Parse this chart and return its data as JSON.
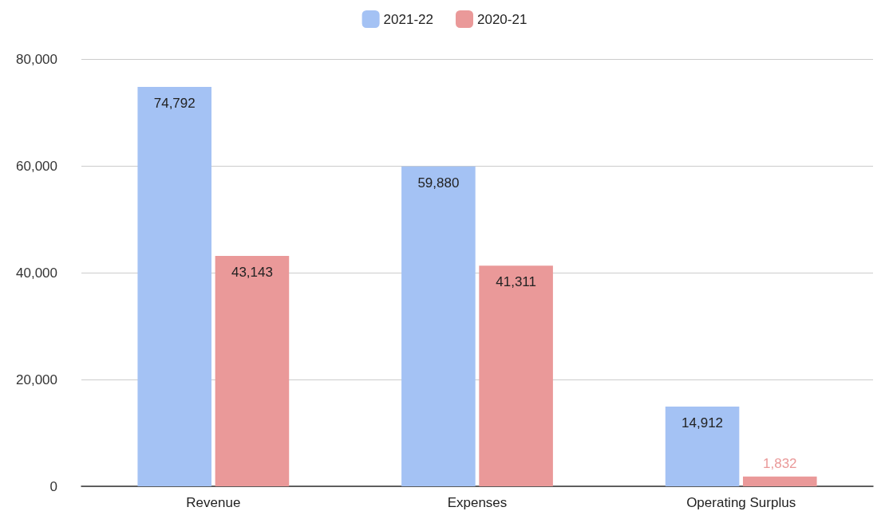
{
  "chart_data": {
    "type": "bar",
    "categories": [
      "Revenue",
      "Expenses",
      "Operating Surplus"
    ],
    "series": [
      {
        "name": "2021-22",
        "color": "#a4c2f4",
        "values": [
          74792,
          59880,
          14912
        ],
        "value_labels": [
          "74,792",
          "59,880",
          "14,912"
        ]
      },
      {
        "name": "2020-21",
        "color": "#ea9999",
        "values": [
          43143,
          41311,
          1832
        ],
        "value_labels": [
          "43,143",
          "41,311",
          "1,832"
        ]
      }
    ],
    "ylim": [
      0,
      80000
    ],
    "yticks": [
      {
        "value": 0,
        "label": "0"
      },
      {
        "value": 20000,
        "label": "20,000"
      },
      {
        "value": 40000,
        "label": "40,000"
      },
      {
        "value": 60000,
        "label": "60,000"
      },
      {
        "value": 80000,
        "label": "80,000"
      }
    ],
    "grid": "y",
    "legend": "top"
  }
}
